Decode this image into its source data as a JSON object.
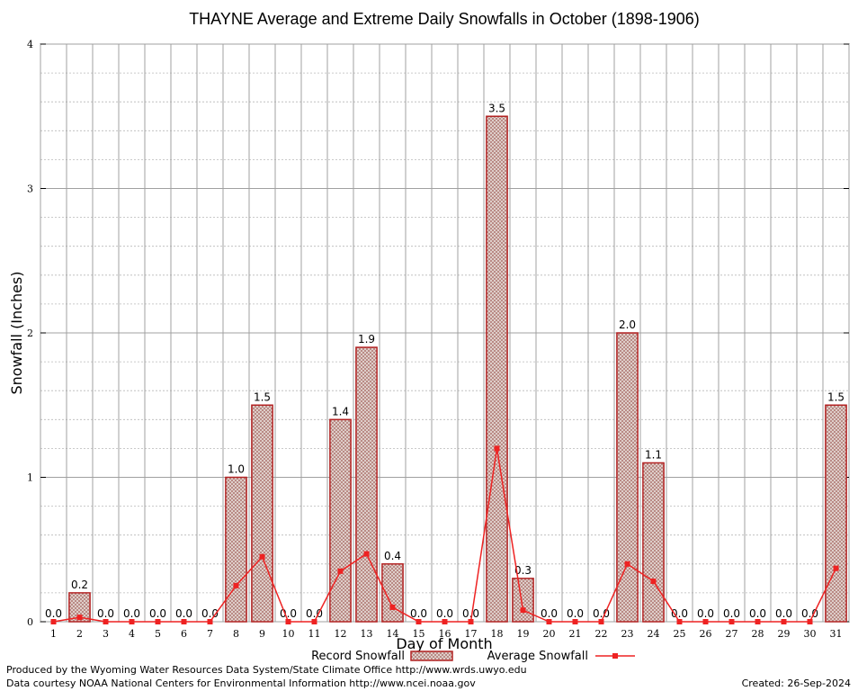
{
  "chart_data": {
    "type": "bar",
    "title": "THAYNE Average and Extreme Daily Snowfalls in October (1898-1906)",
    "xlabel": "Day of Month",
    "ylabel": "Snowfall (Inches)",
    "ylim": [
      0,
      4
    ],
    "yticks": [
      0,
      1,
      2,
      3,
      4
    ],
    "grid": true,
    "legend_position": "bottom-center",
    "categories": [
      "1",
      "2",
      "3",
      "4",
      "5",
      "6",
      "7",
      "8",
      "9",
      "10",
      "11",
      "12",
      "13",
      "14",
      "15",
      "16",
      "17",
      "18",
      "19",
      "20",
      "21",
      "22",
      "23",
      "24",
      "25",
      "26",
      "27",
      "28",
      "29",
      "30",
      "31"
    ],
    "series": [
      {
        "name": "Record Snowfall",
        "kind": "bar",
        "color": "#b22222",
        "values": [
          0.0,
          0.2,
          0.0,
          0.0,
          0.0,
          0.0,
          0.0,
          1.0,
          1.5,
          0.0,
          0.0,
          1.4,
          1.9,
          0.4,
          0.0,
          0.0,
          0.0,
          3.5,
          0.3,
          0.0,
          0.0,
          0.0,
          2.0,
          1.1,
          0.0,
          0.0,
          0.0,
          0.0,
          0.0,
          0.0,
          1.5
        ],
        "labels": [
          "0.0",
          "0.2",
          "0.0",
          "0.0",
          "0.0",
          "0.0",
          "0.0",
          "1.0",
          "1.5",
          "0.0",
          "0.0",
          "1.4",
          "1.9",
          "0.4",
          "0.0",
          "0.0",
          "0.0",
          "3.5",
          "0.3",
          "0.0",
          "0.0",
          "0.0",
          "2.0",
          "1.1",
          "0.0",
          "0.0",
          "0.0",
          "0.0",
          "0.0",
          "0.0",
          "1.5"
        ]
      },
      {
        "name": "Average Snowfall",
        "kind": "line",
        "color": "#ee2222",
        "values": [
          0.0,
          0.03,
          0.0,
          0.0,
          0.0,
          0.0,
          0.0,
          0.25,
          0.45,
          0.0,
          0.0,
          0.35,
          0.47,
          0.1,
          0.0,
          0.0,
          0.0,
          1.2,
          0.08,
          0.0,
          0.0,
          0.0,
          0.4,
          0.28,
          0.0,
          0.0,
          0.0,
          0.0,
          0.0,
          0.0,
          0.37
        ]
      }
    ]
  },
  "footer": {
    "producer": "Produced by the Wyoming Water Resources Data System/State Climate Office http://www.wrds.uwyo.edu",
    "courtesy": "Data courtesy NOAA National Centers for Environmental Information http://www.ncei.noaa.gov",
    "created": "Created:  26-Sep-2024"
  }
}
